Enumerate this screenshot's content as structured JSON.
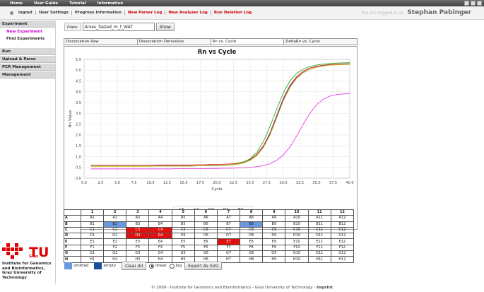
{
  "topnav": {
    "items": [
      "Home",
      "User Guide",
      "Tutorial",
      "Information"
    ]
  },
  "subnav": {
    "items": [
      "logout",
      "User Settings",
      "Progress Information"
    ],
    "red_items": [
      "New Parser Log",
      "New Analyzer Log",
      "Run Deletion Log"
    ]
  },
  "user": {
    "prefix": "You are logged in as",
    "name": "Stephan Pabinger"
  },
  "sidebar": {
    "experiment": "Experiment",
    "new_experiment": "New Experiment",
    "find_experiments": "Find Experiments",
    "run": "Run",
    "upload_parse": "Upload & Parse",
    "pcr_management": "PCR Management",
    "management": "Management",
    "logo_tu": "TU",
    "logo_graz": "Graz",
    "institute_lines": [
      "Institute for Genomics",
      "and Bioinformatics,",
      "Graz University of",
      "Technology"
    ]
  },
  "plate": {
    "label": "Plate:",
    "value": "Arxes_fasted_m_f_WAT",
    "show": "Show"
  },
  "tabs": [
    "Dissociation Raw",
    "Dissociation Derivative",
    "Rn vs. Cycle",
    "DeltaRn vs. Cycle"
  ],
  "chart_data": {
    "type": "line",
    "title": "Rn vs Cycle",
    "xlabel": "Cycle",
    "ylabel": "Rn Value",
    "xlim": [
      0,
      40
    ],
    "ylim": [
      0,
      5.5
    ],
    "xticks": [
      "0.0",
      "2.5",
      "5.0",
      "7.5",
      "10.0",
      "12.5",
      "15.0",
      "17.5",
      "20.0",
      "22.5",
      "25.0",
      "27.5",
      "30.0",
      "32.5",
      "35.0",
      "37.5",
      "40.0"
    ],
    "yticks": [
      "0.0",
      "0.5",
      "1.0",
      "1.5",
      "2.0",
      "2.5",
      "3.0",
      "3.5",
      "4.0",
      "4.5",
      "5.0",
      "5.5"
    ],
    "grid": true,
    "legend_position": "bottom",
    "x": [
      1,
      2,
      3,
      4,
      5,
      6,
      7,
      8,
      9,
      10,
      11,
      12,
      13,
      14,
      15,
      16,
      17,
      18,
      19,
      20,
      21,
      22,
      23,
      24,
      25,
      26,
      27,
      28,
      29,
      30,
      31,
      32,
      33,
      34,
      35,
      36,
      37,
      38,
      39,
      40
    ],
    "series": [
      {
        "name": "C3",
        "color": "#e02020",
        "values": [
          0.6,
          0.6,
          0.6,
          0.6,
          0.6,
          0.6,
          0.6,
          0.6,
          0.6,
          0.6,
          0.61,
          0.61,
          0.61,
          0.61,
          0.61,
          0.61,
          0.62,
          0.62,
          0.63,
          0.63,
          0.64,
          0.66,
          0.69,
          0.75,
          0.87,
          1.1,
          1.5,
          2.1,
          2.9,
          3.7,
          4.3,
          4.7,
          4.95,
          5.1,
          5.18,
          5.23,
          5.26,
          5.28,
          5.29,
          5.3
        ]
      },
      {
        "name": "C4",
        "color": "#4040e0",
        "values": [
          0.56,
          0.56,
          0.56,
          0.56,
          0.56,
          0.56,
          0.56,
          0.56,
          0.56,
          0.56,
          0.57,
          0.57,
          0.57,
          0.57,
          0.57,
          0.57,
          0.58,
          0.58,
          0.59,
          0.59,
          0.6,
          0.62,
          0.65,
          0.71,
          0.83,
          1.05,
          1.45,
          2.05,
          2.85,
          3.65,
          4.25,
          4.65,
          4.9,
          5.05,
          5.14,
          5.2,
          5.24,
          5.26,
          5.27,
          5.28
        ]
      },
      {
        "name": "D3",
        "color": "#20b020",
        "values": [
          0.55,
          0.55,
          0.55,
          0.55,
          0.55,
          0.55,
          0.55,
          0.55,
          0.55,
          0.55,
          0.56,
          0.56,
          0.56,
          0.56,
          0.56,
          0.56,
          0.57,
          0.57,
          0.58,
          0.59,
          0.6,
          0.62,
          0.66,
          0.74,
          0.9,
          1.2,
          1.7,
          2.4,
          3.2,
          3.95,
          4.5,
          4.85,
          5.05,
          5.17,
          5.24,
          5.28,
          5.31,
          5.33,
          5.34,
          5.35
        ]
      },
      {
        "name": "D4",
        "color": "#d4b800",
        "values": [
          0.55,
          0.55,
          0.55,
          0.55,
          0.55,
          0.55,
          0.55,
          0.55,
          0.55,
          0.55,
          0.56,
          0.56,
          0.56,
          0.56,
          0.56,
          0.56,
          0.57,
          0.57,
          0.58,
          0.58,
          0.59,
          0.61,
          0.64,
          0.7,
          0.82,
          1.04,
          1.42,
          2.0,
          2.78,
          3.58,
          4.2,
          4.62,
          4.88,
          5.04,
          5.13,
          5.19,
          5.23,
          5.25,
          5.26,
          5.27
        ]
      },
      {
        "name": "E7",
        "color": "#e040e0",
        "values": [
          0.43,
          0.43,
          0.43,
          0.43,
          0.43,
          0.43,
          0.43,
          0.43,
          0.43,
          0.43,
          0.43,
          0.43,
          0.43,
          0.44,
          0.44,
          0.44,
          0.44,
          0.44,
          0.45,
          0.45,
          0.46,
          0.46,
          0.47,
          0.48,
          0.5,
          0.53,
          0.58,
          0.67,
          0.83,
          1.08,
          1.45,
          1.95,
          2.5,
          3.0,
          3.4,
          3.66,
          3.8,
          3.87,
          3.9,
          3.92
        ]
      }
    ]
  },
  "plate_grid": {
    "columns": [
      "1",
      "2",
      "3",
      "4",
      "5",
      "6",
      "7",
      "8",
      "9",
      "10",
      "11",
      "12"
    ],
    "rows": [
      {
        "label": "A",
        "cells": [
          "A1",
          "A2",
          "A3",
          "A4",
          "A5",
          "A6",
          "A7",
          "A8",
          "A9",
          "A10",
          "A11",
          "A12"
        ],
        "state": [
          "",
          "",
          "",
          "",
          "",
          "",
          "",
          "",
          "",
          "",
          "",
          ""
        ]
      },
      {
        "label": "B",
        "cells": [
          "B1",
          "B2",
          "B3",
          "B4",
          "B5",
          "B6",
          "B7",
          "B8",
          "B9",
          "B10",
          "B11",
          "B12"
        ],
        "state": [
          "",
          "omit",
          "",
          "",
          "",
          "",
          "",
          "omit",
          "",
          "",
          "",
          ""
        ]
      },
      {
        "label": "C",
        "cells": [
          "C1",
          "C2",
          "C3",
          "C4",
          "C5",
          "C6",
          "C7",
          "C8",
          "C9",
          "C10",
          "C11",
          "C12"
        ],
        "state": [
          "",
          "",
          "sel",
          "sel",
          "",
          "",
          "",
          "",
          "",
          "",
          "",
          ""
        ]
      },
      {
        "label": "D",
        "cells": [
          "D1",
          "D2",
          "D3",
          "D4",
          "D5",
          "D6",
          "D7",
          "D8",
          "D9",
          "D10",
          "D11",
          "D12"
        ],
        "state": [
          "",
          "",
          "sel",
          "sel",
          "",
          "",
          "",
          "",
          "",
          "",
          "",
          ""
        ]
      },
      {
        "label": "E",
        "cells": [
          "E1",
          "E2",
          "E3",
          "E4",
          "E5",
          "E6",
          "E7",
          "E8",
          "E9",
          "E10",
          "E11",
          "E12"
        ],
        "state": [
          "",
          "",
          "",
          "",
          "",
          "",
          "sel",
          "",
          "",
          "",
          "",
          ""
        ]
      },
      {
        "label": "F",
        "cells": [
          "F1",
          "F2",
          "F3",
          "F4",
          "F5",
          "F6",
          "F7",
          "F8",
          "F9",
          "F10",
          "F11",
          "F12"
        ],
        "state": [
          "",
          "",
          "",
          "",
          "",
          "",
          "",
          "",
          "",
          "",
          "",
          ""
        ]
      },
      {
        "label": "G",
        "cells": [
          "G1",
          "G2",
          "G3",
          "G4",
          "G5",
          "G6",
          "G7",
          "G8",
          "G9",
          "G10",
          "G11",
          "G12"
        ],
        "state": [
          "",
          "",
          "",
          "",
          "",
          "",
          "",
          "",
          "",
          "",
          "",
          ""
        ]
      },
      {
        "label": "H",
        "cells": [
          "H1",
          "H2",
          "H3",
          "H4",
          "H5",
          "H6",
          "H7",
          "H8",
          "H9",
          "H10",
          "H11",
          "H12"
        ],
        "state": [
          "",
          "",
          "",
          "",
          "",
          "",
          "",
          "",
          "",
          "",
          "",
          ""
        ]
      }
    ]
  },
  "legend": {
    "omitted": "omitted",
    "empty": "empty",
    "clear_all": "Clear All",
    "linear": "linear",
    "log": "log",
    "export": "Export As SVG",
    "scale_selected": "linear"
  },
  "colors": {
    "omitted": "#6a98e0",
    "empty": "#1b4f9a",
    "selected": "#e01010"
  },
  "footer": {
    "text": "© 2009 - Institute for Genomics and Bioinformatics - Graz University of Technology - ",
    "link": "Imprint"
  }
}
